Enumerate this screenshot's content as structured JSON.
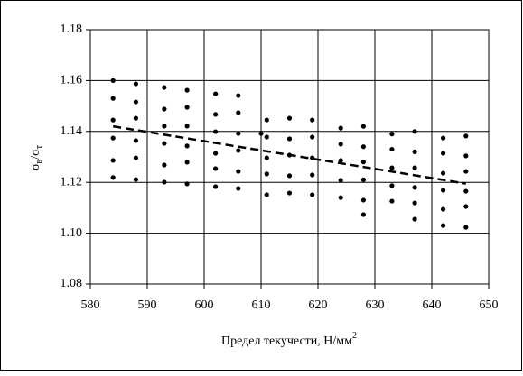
{
  "chart_data": {
    "type": "scatter",
    "xlabel": [
      "Предел текучести, Н/мм",
      "2"
    ],
    "ylabel": [
      "σ",
      "в",
      "/σ",
      "т"
    ],
    "xlim": [
      580,
      650
    ],
    "xticks": [
      580,
      590,
      600,
      610,
      620,
      630,
      640,
      650
    ],
    "ylim": [
      1.08,
      1.18
    ],
    "yticks": [
      {
        "value": 1.08,
        "label": "1.08"
      },
      {
        "value": 1.1,
        "label": "1.10"
      },
      {
        "value": 1.12,
        "label": "1.12"
      },
      {
        "value": 1.14,
        "label": "1.14"
      },
      {
        "value": 1.16,
        "label": "1.16"
      },
      {
        "value": 1.18,
        "label": "1.18"
      }
    ],
    "grid": true,
    "series": [
      {
        "color": "#000000",
        "x": [
          584,
          584,
          584,
          584,
          584,
          584,
          588,
          588,
          588,
          588,
          588,
          588,
          593,
          593,
          593,
          593,
          593,
          593,
          597,
          597,
          597,
          597,
          597,
          597,
          602,
          602,
          602,
          602,
          602,
          602,
          606,
          606,
          606,
          606,
          606,
          606,
          610,
          611,
          611,
          611,
          611,
          611,
          615,
          615,
          615,
          615,
          615,
          619,
          619,
          619,
          619,
          619,
          624,
          624,
          624,
          624,
          624,
          628,
          628,
          628,
          628,
          628,
          628,
          633,
          633,
          633,
          633,
          633,
          637,
          637,
          637,
          637,
          637,
          637,
          642,
          642,
          642,
          642,
          642,
          642,
          646,
          646,
          646,
          646,
          646,
          646
        ],
        "values": [
          1.16,
          1.153,
          1.1445,
          1.1374,
          1.1286,
          1.1219,
          1.1587,
          1.1516,
          1.1452,
          1.1364,
          1.1296,
          1.1211,
          1.1573,
          1.1488,
          1.1421,
          1.1353,
          1.1268,
          1.1201,
          1.1562,
          1.1495,
          1.1421,
          1.1343,
          1.1279,
          1.1194,
          1.1548,
          1.1467,
          1.1399,
          1.1314,
          1.1254,
          1.1183,
          1.1541,
          1.1474,
          1.1392,
          1.1325,
          1.1243,
          1.1176,
          1.1392,
          1.1445,
          1.1378,
          1.1296,
          1.1233,
          1.1151,
          1.1452,
          1.1371,
          1.1307,
          1.1226,
          1.1158,
          1.1445,
          1.1378,
          1.1296,
          1.1229,
          1.1151,
          1.1413,
          1.135,
          1.1286,
          1.1208,
          1.114,
          1.142,
          1.134,
          1.128,
          1.121,
          1.113,
          1.1073,
          1.139,
          1.133,
          1.1257,
          1.1187,
          1.1126,
          1.14,
          1.132,
          1.1257,
          1.118,
          1.1119,
          1.1055,
          1.1374,
          1.1314,
          1.1236,
          1.1169,
          1.1094,
          1.103,
          1.1382,
          1.1304,
          1.1243,
          1.1165,
          1.1105,
          1.1023
        ]
      },
      {
        "type": "line",
        "dashed": true,
        "color": "#000000",
        "x": [
          584,
          646
        ],
        "values": [
          1.142,
          1.1195
        ]
      }
    ]
  }
}
